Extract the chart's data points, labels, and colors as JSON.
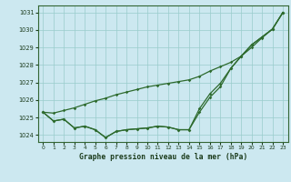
{
  "title": "Graphe pression niveau de la mer (hPa)",
  "bg_color": "#cce8f0",
  "grid_color": "#99cccc",
  "line_color": "#2d6a2d",
  "x_ticks": [
    0,
    1,
    2,
    3,
    4,
    5,
    6,
    7,
    8,
    9,
    10,
    11,
    12,
    13,
    14,
    15,
    16,
    17,
    18,
    19,
    20,
    21,
    22,
    23
  ],
  "ylim": [
    1023.6,
    1031.4
  ],
  "yticks": [
    1024,
    1025,
    1026,
    1027,
    1028,
    1029,
    1030,
    1031
  ],
  "series": [
    [
      1025.3,
      1024.8,
      1024.9,
      1024.4,
      1024.5,
      1024.3,
      1023.85,
      1024.2,
      1024.3,
      1024.35,
      1024.4,
      1024.5,
      1024.45,
      1024.3,
      1024.3,
      1025.5,
      1026.35,
      1026.95,
      1027.8,
      1028.5,
      1029.15,
      1029.6,
      1030.05,
      1031.0
    ],
    [
      1025.3,
      1024.8,
      1024.9,
      1024.4,
      1024.5,
      1024.3,
      1023.85,
      1024.2,
      1024.3,
      1024.35,
      1024.4,
      1024.5,
      1024.45,
      1024.3,
      1024.3,
      1025.3,
      1026.15,
      1026.75,
      1027.8,
      1028.5,
      1029.15,
      1029.6,
      1030.05,
      1031.0
    ],
    [
      1025.3,
      1025.25,
      1025.4,
      1025.55,
      1025.75,
      1025.95,
      1026.1,
      1026.3,
      1026.45,
      1026.6,
      1026.75,
      1026.85,
      1026.95,
      1027.05,
      1027.15,
      1027.35,
      1027.65,
      1027.9,
      1028.15,
      1028.5,
      1029.0,
      1029.55,
      1030.05,
      1031.0
    ]
  ]
}
